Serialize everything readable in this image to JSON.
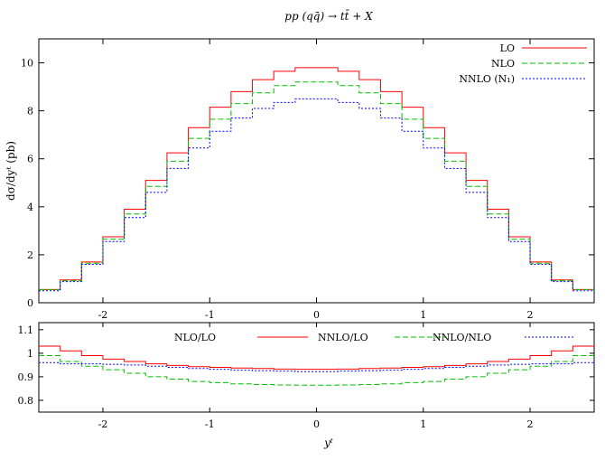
{
  "chart_data": [
    {
      "type": "line",
      "title": "pp (qq̄) → tt̄ + X",
      "xlabel": "",
      "ylabel": "dσ/dyᵗ (pb)",
      "xlim": [
        -2.6,
        2.6
      ],
      "ylim": [
        0,
        11
      ],
      "xticks": [
        -2,
        -1,
        0,
        1,
        2
      ],
      "xtick_labels": [
        "-2",
        "-1",
        "0",
        "1",
        "2"
      ],
      "yticks": [
        0,
        2,
        4,
        6,
        8,
        10
      ],
      "ytick_labels": [
        "0",
        "2",
        "4",
        "6",
        "8",
        "10"
      ],
      "grid": false,
      "legend_position": "top-right",
      "bin_edges": [
        -2.6,
        -2.4,
        -2.2,
        -2.0,
        -1.8,
        -1.6,
        -1.4,
        -1.2,
        -1.0,
        -0.8,
        -0.6,
        -0.4,
        -0.2,
        0.0,
        0.2,
        0.4,
        0.6,
        0.8,
        1.0,
        1.2,
        1.4,
        1.6,
        1.8,
        2.0,
        2.2,
        2.4,
        2.6
      ],
      "series": [
        {
          "name": "LO",
          "color": "#ff0000",
          "dash": "solid",
          "values": [
            0.55,
            0.95,
            1.7,
            2.75,
            3.9,
            5.1,
            6.25,
            7.3,
            8.15,
            8.8,
            9.3,
            9.65,
            9.8,
            9.8,
            9.65,
            9.3,
            8.8,
            8.15,
            7.3,
            6.25,
            5.1,
            3.9,
            2.75,
            1.7,
            0.95,
            0.55
          ]
        },
        {
          "name": "NLO",
          "color": "#00c000",
          "dash": "6,3",
          "values": [
            0.55,
            0.92,
            1.65,
            2.65,
            3.7,
            4.85,
            5.9,
            6.85,
            7.65,
            8.3,
            8.75,
            9.05,
            9.2,
            9.2,
            9.05,
            8.75,
            8.3,
            7.65,
            6.85,
            5.9,
            4.85,
            3.7,
            2.65,
            1.65,
            0.92,
            0.55
          ]
        },
        {
          "name": "NNLO (N₁)",
          "color": "#0000ff",
          "dash": "2,2",
          "values": [
            0.5,
            0.88,
            1.6,
            2.55,
            3.55,
            4.6,
            5.6,
            6.45,
            7.15,
            7.7,
            8.1,
            8.35,
            8.5,
            8.5,
            8.35,
            8.1,
            7.7,
            7.15,
            6.45,
            5.6,
            4.6,
            3.55,
            2.55,
            1.6,
            0.88,
            0.5
          ]
        }
      ]
    },
    {
      "type": "line",
      "title": "",
      "xlabel": "yᵗ",
      "ylabel": "",
      "xlim": [
        -2.6,
        2.6
      ],
      "ylim": [
        0.75,
        1.13
      ],
      "xticks": [
        -2,
        -1,
        0,
        1,
        2
      ],
      "xtick_labels": [
        "-2",
        "-1",
        "0",
        "1",
        "2"
      ],
      "yticks": [
        0.8,
        0.9,
        1.0,
        1.1
      ],
      "ytick_labels": [
        "0.8",
        "0.9",
        "1",
        "1.1"
      ],
      "grid": false,
      "legend_position": "top",
      "bin_edges": [
        -2.6,
        -2.4,
        -2.2,
        -2.0,
        -1.8,
        -1.6,
        -1.4,
        -1.2,
        -1.0,
        -0.8,
        -0.6,
        -0.4,
        -0.2,
        0.0,
        0.2,
        0.4,
        0.6,
        0.8,
        1.0,
        1.2,
        1.4,
        1.6,
        1.8,
        2.0,
        2.2,
        2.4,
        2.6
      ],
      "series": [
        {
          "name": "NLO/LO",
          "color": "#ff0000",
          "dash": "solid",
          "values": [
            1.03,
            1.01,
            0.99,
            0.975,
            0.965,
            0.955,
            0.948,
            0.943,
            0.94,
            0.937,
            0.935,
            0.933,
            0.932,
            0.932,
            0.933,
            0.935,
            0.937,
            0.94,
            0.943,
            0.948,
            0.955,
            0.965,
            0.975,
            0.99,
            1.01,
            1.03
          ]
        },
        {
          "name": "NNLO/LO",
          "color": "#00c000",
          "dash": "6,3",
          "values": [
            0.99,
            0.965,
            0.945,
            0.93,
            0.915,
            0.9,
            0.89,
            0.88,
            0.875,
            0.87,
            0.867,
            0.865,
            0.864,
            0.864,
            0.865,
            0.867,
            0.87,
            0.875,
            0.88,
            0.89,
            0.9,
            0.915,
            0.93,
            0.945,
            0.965,
            0.99
          ]
        },
        {
          "name": "NNLO/NLO",
          "color": "#0000ff",
          "dash": "2,2",
          "values": [
            0.96,
            0.955,
            0.955,
            0.953,
            0.95,
            0.945,
            0.94,
            0.935,
            0.932,
            0.928,
            0.926,
            0.924,
            0.922,
            0.922,
            0.924,
            0.926,
            0.928,
            0.932,
            0.935,
            0.94,
            0.945,
            0.95,
            0.953,
            0.955,
            0.955,
            0.96
          ]
        }
      ]
    }
  ]
}
